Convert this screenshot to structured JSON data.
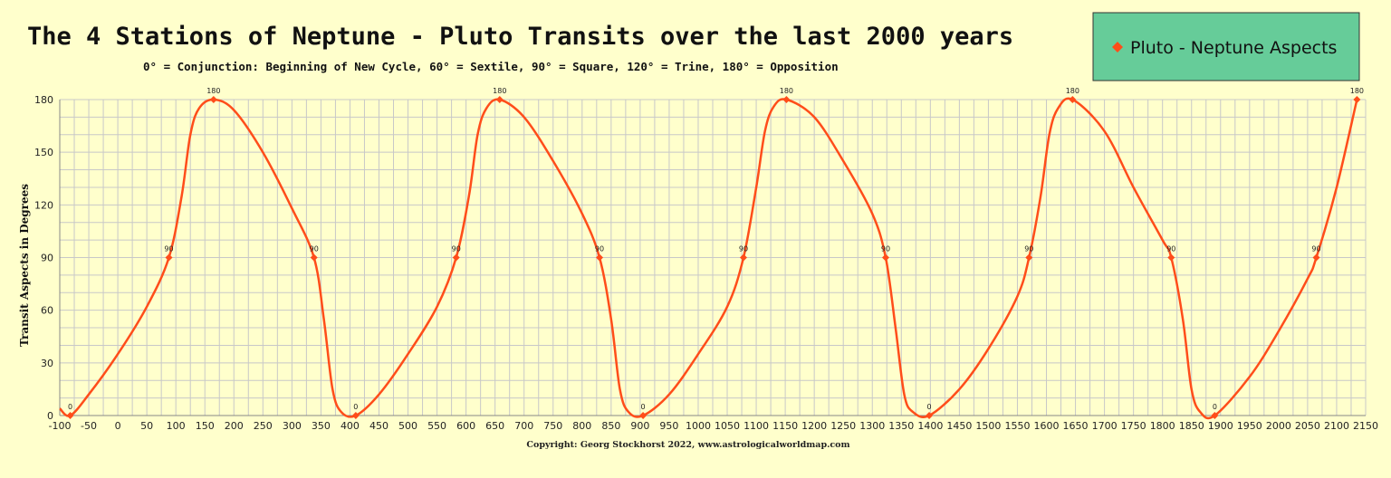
{
  "chart_data": {
    "type": "line",
    "title": "The 4 Stations of Neptune - Pluto Transits over the last 2000 years",
    "subtitle": "0° = Conjunction: Beginning of New Cycle, 60° = Sextile, 90° = Square, 120° = Trine, 180° = Opposition",
    "ylabel": "Transit Aspects in Degrees",
    "xlabel": "",
    "copyright": "Copyright: Georg Stockhorst 2022, www.astrologicalworldmap.com",
    "xlim": [
      -100,
      2150
    ],
    "ylim": [
      0,
      180
    ],
    "x_ticks": [
      -100,
      -50,
      0,
      50,
      100,
      150,
      200,
      250,
      300,
      350,
      400,
      450,
      500,
      550,
      600,
      650,
      700,
      750,
      800,
      850,
      900,
      950,
      1000,
      1050,
      1100,
      1150,
      1200,
      1250,
      1300,
      1350,
      1400,
      1450,
      1500,
      1550,
      1600,
      1650,
      1700,
      1750,
      1800,
      1850,
      1900,
      1950,
      2000,
      2050,
      2100,
      2150
    ],
    "y_ticks": [
      0,
      30,
      60,
      90,
      120,
      150,
      180
    ],
    "grid": true,
    "legend": {
      "position": "top-right",
      "entries": [
        "Pluto - Neptune Aspects"
      ]
    },
    "series": [
      {
        "name": "Pluto - Neptune Aspects",
        "color": "#ff4d1a",
        "marker": "diamond",
        "curve": [
          [
            -100,
            4
          ],
          [
            -82,
            0
          ],
          [
            -50,
            12
          ],
          [
            0,
            35
          ],
          [
            50,
            62
          ],
          [
            88,
            90
          ],
          [
            110,
            125
          ],
          [
            125,
            160
          ],
          [
            140,
            175
          ],
          [
            165,
            180
          ],
          [
            200,
            174
          ],
          [
            250,
            150
          ],
          [
            300,
            118
          ],
          [
            338,
            90
          ],
          [
            355,
            55
          ],
          [
            370,
            15
          ],
          [
            385,
            2
          ],
          [
            410,
            0
          ],
          [
            450,
            12
          ],
          [
            500,
            35
          ],
          [
            550,
            62
          ],
          [
            583,
            90
          ],
          [
            605,
            125
          ],
          [
            620,
            160
          ],
          [
            635,
            175
          ],
          [
            658,
            180
          ],
          [
            700,
            170
          ],
          [
            750,
            145
          ],
          [
            800,
            115
          ],
          [
            830,
            90
          ],
          [
            850,
            55
          ],
          [
            865,
            15
          ],
          [
            880,
            2
          ],
          [
            905,
            0
          ],
          [
            950,
            12
          ],
          [
            1000,
            35
          ],
          [
            1050,
            62
          ],
          [
            1078,
            90
          ],
          [
            1100,
            130
          ],
          [
            1115,
            162
          ],
          [
            1130,
            176
          ],
          [
            1152,
            180
          ],
          [
            1200,
            170
          ],
          [
            1250,
            145
          ],
          [
            1300,
            115
          ],
          [
            1323,
            90
          ],
          [
            1340,
            50
          ],
          [
            1355,
            12
          ],
          [
            1370,
            2
          ],
          [
            1398,
            0
          ],
          [
            1450,
            15
          ],
          [
            1500,
            38
          ],
          [
            1550,
            68
          ],
          [
            1570,
            90
          ],
          [
            1590,
            125
          ],
          [
            1605,
            160
          ],
          [
            1620,
            175
          ],
          [
            1645,
            180
          ],
          [
            1700,
            162
          ],
          [
            1750,
            130
          ],
          [
            1800,
            100
          ],
          [
            1815,
            90
          ],
          [
            1835,
            55
          ],
          [
            1850,
            15
          ],
          [
            1865,
            2
          ],
          [
            1890,
            0
          ],
          [
            1950,
            22
          ],
          [
            2000,
            48
          ],
          [
            2050,
            78
          ],
          [
            2065,
            90
          ],
          [
            2100,
            130
          ],
          [
            2135,
            180
          ]
        ],
        "labeled_points": [
          {
            "x": -82,
            "y": 0,
            "label": "0"
          },
          {
            "x": 88,
            "y": 90,
            "label": "90"
          },
          {
            "x": 165,
            "y": 180,
            "label": "180"
          },
          {
            "x": 338,
            "y": 90,
            "label": "90"
          },
          {
            "x": 410,
            "y": 0,
            "label": "0"
          },
          {
            "x": 583,
            "y": 90,
            "label": "90"
          },
          {
            "x": 658,
            "y": 180,
            "label": "180"
          },
          {
            "x": 830,
            "y": 90,
            "label": "90"
          },
          {
            "x": 905,
            "y": 0,
            "label": "0"
          },
          {
            "x": 1078,
            "y": 90,
            "label": "90"
          },
          {
            "x": 1152,
            "y": 180,
            "label": "180"
          },
          {
            "x": 1323,
            "y": 90,
            "label": "90"
          },
          {
            "x": 1398,
            "y": 0,
            "label": "0"
          },
          {
            "x": 1570,
            "y": 90,
            "label": "90"
          },
          {
            "x": 1645,
            "y": 180,
            "label": "180"
          },
          {
            "x": 1815,
            "y": 90,
            "label": "90"
          },
          {
            "x": 1890,
            "y": 0,
            "label": "0"
          },
          {
            "x": 2065,
            "y": 90,
            "label": "90"
          },
          {
            "x": 2135,
            "y": 180,
            "label": "180"
          }
        ]
      }
    ],
    "colors": {
      "background": "#ffffcc",
      "grid": "#c8c8c8",
      "legend_fill": "#66cc99"
    }
  }
}
